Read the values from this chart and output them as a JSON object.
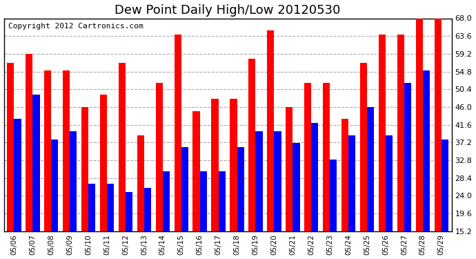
{
  "title": "Dew Point Daily High/Low 20120530",
  "copyright": "Copyright 2012 Cartronics.com",
  "dates": [
    "05/06",
    "05/07",
    "05/08",
    "05/09",
    "05/10",
    "05/11",
    "05/12",
    "05/13",
    "05/14",
    "05/15",
    "05/16",
    "05/17",
    "05/18",
    "05/19",
    "05/20",
    "05/21",
    "05/22",
    "05/23",
    "05/24",
    "05/25",
    "05/26",
    "05/27",
    "05/28",
    "05/29"
  ],
  "high_values": [
    57.0,
    59.2,
    55.0,
    55.0,
    46.0,
    49.0,
    57.0,
    39.0,
    52.0,
    64.0,
    45.0,
    48.0,
    48.0,
    58.0,
    65.0,
    46.0,
    52.0,
    52.0,
    43.0,
    57.0,
    64.0,
    64.0,
    68.0,
    68.0
  ],
  "low_values": [
    43.0,
    49.0,
    38.0,
    40.0,
    27.0,
    27.0,
    25.0,
    26.0,
    30.0,
    36.0,
    30.0,
    30.0,
    36.0,
    40.0,
    40.0,
    37.0,
    42.0,
    33.0,
    39.0,
    46.0,
    39.0,
    52.0,
    55.0,
    38.0
  ],
  "bar_color_high": "#ff0000",
  "bar_color_low": "#0000ff",
  "bg_color": "#ffffff",
  "grid_color": "#aaaaaa",
  "ymin": 15.2,
  "ymax": 68.0,
  "yticks": [
    15.2,
    19.6,
    24.0,
    28.4,
    32.8,
    37.2,
    41.6,
    46.0,
    50.4,
    54.8,
    59.2,
    63.6,
    68.0
  ],
  "title_fontsize": 13,
  "copyright_fontsize": 8,
  "bar_width": 0.38
}
